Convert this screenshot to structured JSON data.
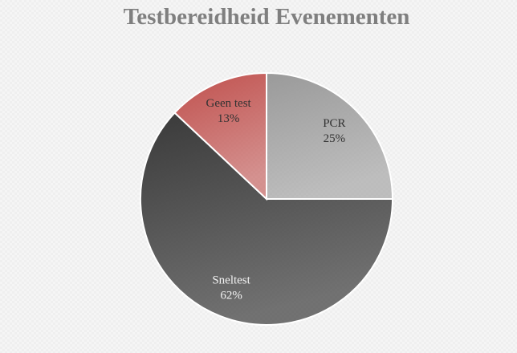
{
  "chart_data": {
    "type": "pie",
    "title": "Testbereidheid Evenementen",
    "categories": [
      "PCR",
      "Sneltest",
      "Geen test"
    ],
    "values": [
      25,
      62,
      13
    ],
    "value_labels": [
      "25%",
      "62%",
      "13%"
    ],
    "colors": [
      "#9a9a9a",
      "#3a3a3a",
      "#c0504d"
    ]
  }
}
